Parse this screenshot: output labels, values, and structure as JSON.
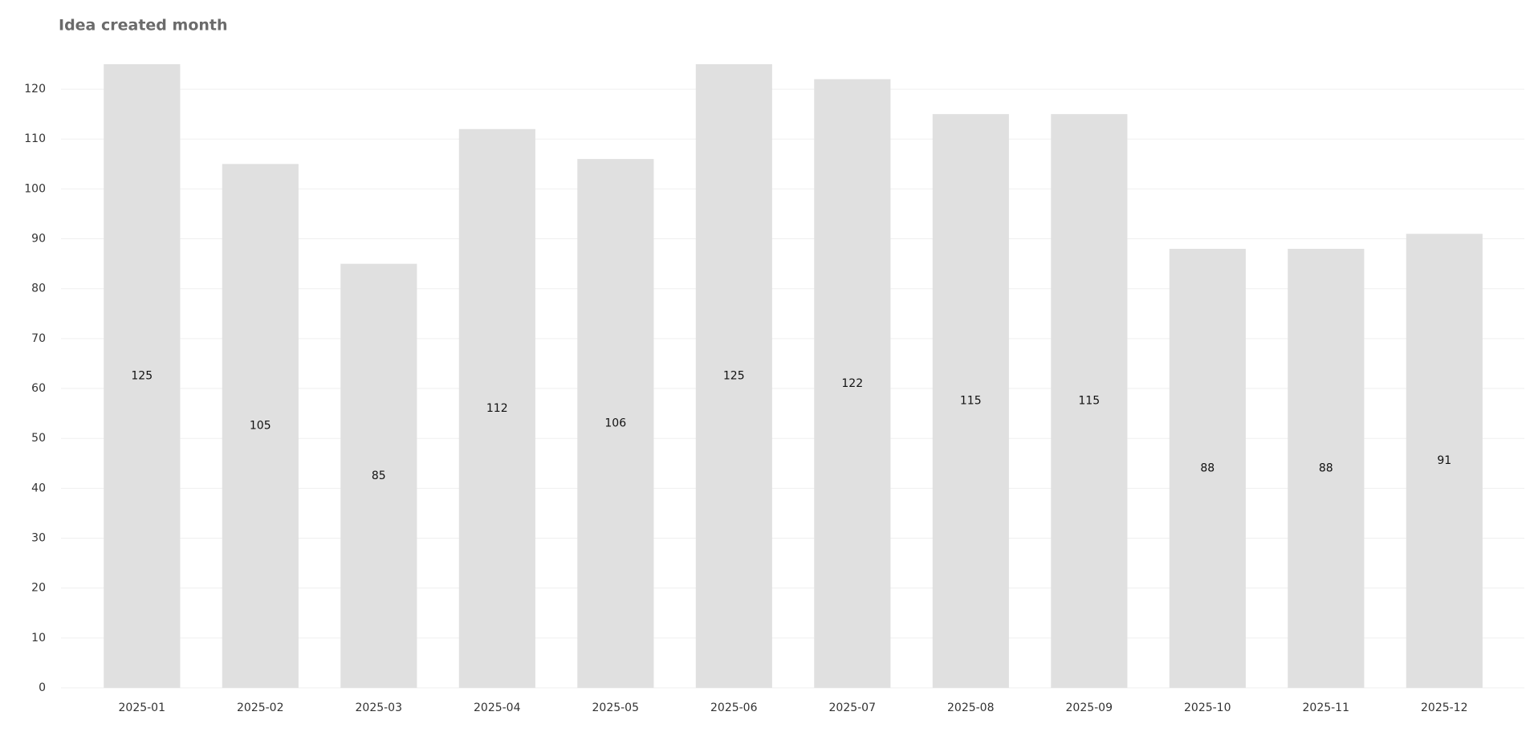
{
  "chart_data": {
    "type": "bar",
    "title": "Idea created month",
    "categories": [
      "2025-01",
      "2025-02",
      "2025-03",
      "2025-04",
      "2025-05",
      "2025-06",
      "2025-07",
      "2025-08",
      "2025-09",
      "2025-10",
      "2025-11",
      "2025-12"
    ],
    "values": [
      125,
      105,
      85,
      112,
      106,
      125,
      122,
      115,
      115,
      88,
      88,
      91
    ],
    "color": "#e0e0e0",
    "ylim": [
      0,
      125
    ],
    "yticks": [
      0,
      10,
      20,
      30,
      40,
      50,
      60,
      70,
      80,
      90,
      100,
      110,
      120
    ],
    "grid": true
  }
}
